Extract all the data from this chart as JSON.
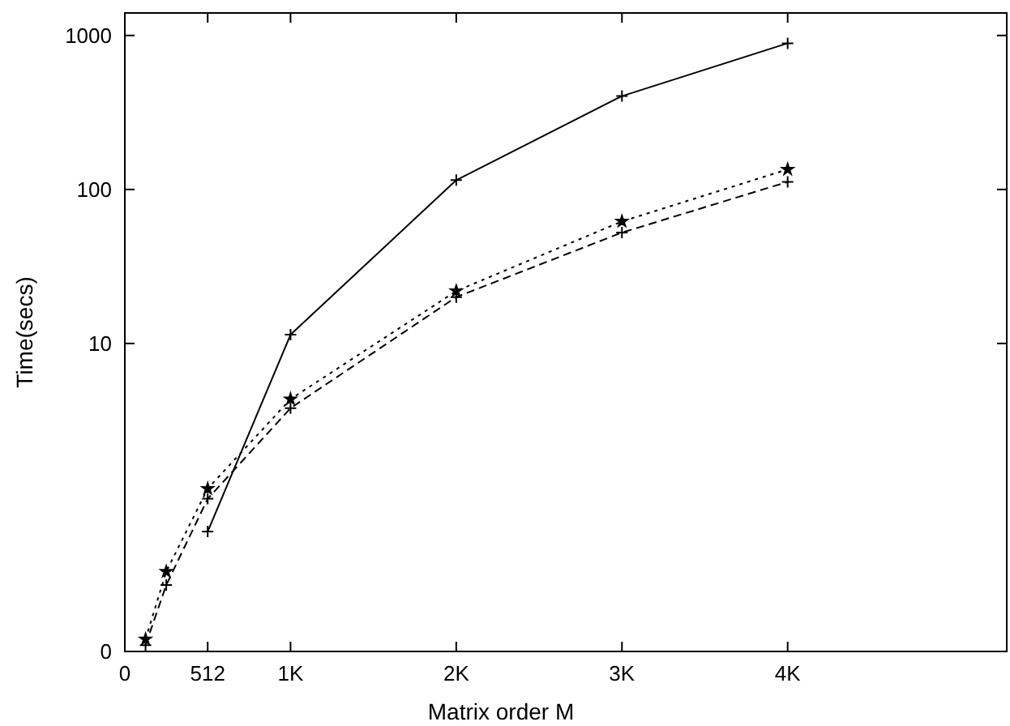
{
  "chart_data": {
    "type": "line",
    "xlabel": "Matrix order M",
    "ylabel": "Time(secs)",
    "log": "y",
    "grid": false,
    "xlim": [
      0,
      5450
    ],
    "ylim": [
      0.1,
      1400
    ],
    "xticks": [
      0,
      512,
      {
        "value": 1024,
        "label": "1K"
      },
      {
        "value": 2048,
        "label": "2K"
      },
      {
        "value": 3072,
        "label": "3K"
      },
      {
        "value": 4096,
        "label": "4K"
      }
    ],
    "yticks": [
      {
        "value": 0.1,
        "label": "0"
      },
      10,
      100,
      1000
    ],
    "x": [
      128,
      256,
      512,
      1024,
      2048,
      3072,
      4096
    ],
    "series": [
      {
        "color": "#000000",
        "line_style": "solid",
        "marker": "cross",
        "values": [
          null,
          null,
          0.6,
          11.4,
          115,
          404,
          890
        ]
      },
      {
        "color": "#000000",
        "line_style": "dashed",
        "marker": "cross",
        "values": [
          0.11,
          0.27,
          0.98,
          3.8,
          20,
          52.5,
          112
        ]
      },
      {
        "color": "#000000",
        "line_style": "dotted",
        "marker": "star",
        "values": [
          0.12,
          0.33,
          1.14,
          4.35,
          21.9,
          62,
          135
        ]
      }
    ]
  }
}
